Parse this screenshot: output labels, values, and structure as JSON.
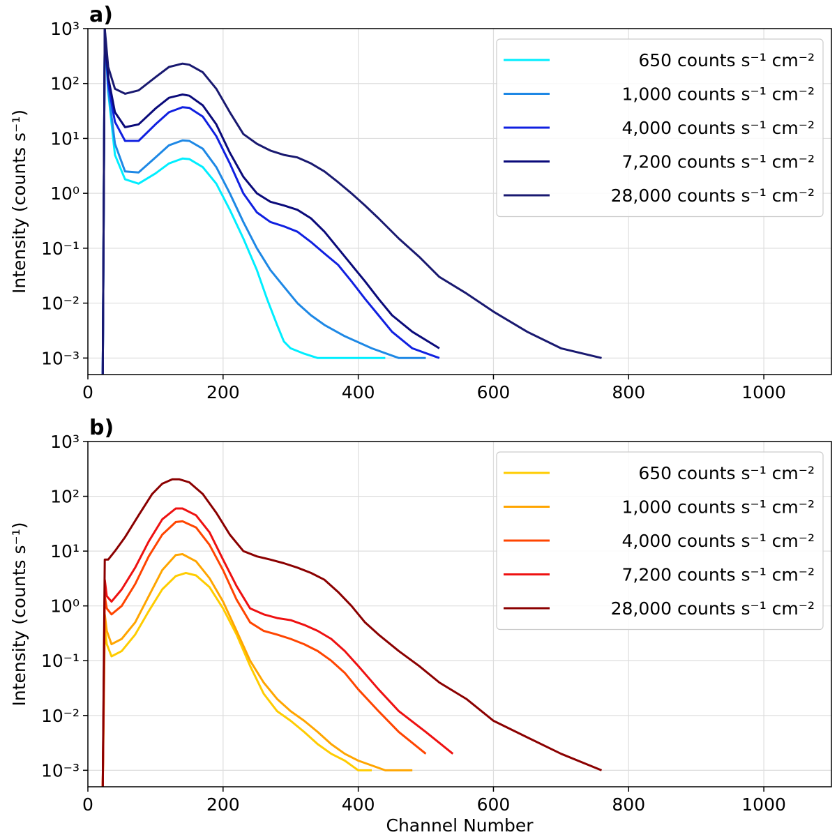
{
  "chart_data": [
    {
      "panel_label": "a)",
      "type": "line",
      "xlabel": "",
      "ylabel": "Intensity (counts s⁻¹)",
      "x_scale": "linear",
      "y_scale": "log",
      "xlim": [
        0,
        1100
      ],
      "ylim": [
        0.0005,
        1000
      ],
      "xticks": [
        "0",
        "200",
        "400",
        "600",
        "800",
        "1000"
      ],
      "yticks": [
        "10⁻³",
        "10⁻²",
        "10⁻¹",
        "10⁰",
        "10¹",
        "10²",
        "10³"
      ],
      "grid": true,
      "legend_position": "top-right",
      "series": [
        {
          "name": "650 counts s⁻¹ cm⁻²",
          "color": "#00eeff",
          "x": [
            22,
            25,
            30,
            40,
            55,
            75,
            100,
            120,
            140,
            150,
            170,
            190,
            210,
            230,
            250,
            265,
            280,
            290,
            300,
            320,
            340,
            360,
            380,
            400,
            420,
            440
          ],
          "y": [
            0.0005,
            900,
            70,
            5,
            1.8,
            1.5,
            2.3,
            3.5,
            4.3,
            4.2,
            3.0,
            1.5,
            0.5,
            0.15,
            0.04,
            0.012,
            0.004,
            0.002,
            0.0015,
            0.0012,
            0.001,
            0.001,
            0.001,
            0.001,
            0.001,
            0.001
          ]
        },
        {
          "name": "1,000 counts s⁻¹ cm⁻²",
          "color": "#1e88e5",
          "x": [
            22,
            25,
            30,
            40,
            55,
            75,
            100,
            120,
            140,
            150,
            170,
            190,
            210,
            230,
            250,
            270,
            290,
            310,
            330,
            350,
            380,
            420,
            460,
            500
          ],
          "y": [
            0.0005,
            950,
            80,
            8,
            2.5,
            2.4,
            4.5,
            7.5,
            9.2,
            9.0,
            6.5,
            3.0,
            1.0,
            0.3,
            0.1,
            0.04,
            0.02,
            0.01,
            0.006,
            0.004,
            0.0025,
            0.0015,
            0.001,
            0.001
          ]
        },
        {
          "name": "4,000 counts s⁻¹ cm⁻²",
          "color": "#1020e0",
          "x": [
            22,
            25,
            30,
            40,
            55,
            75,
            100,
            120,
            140,
            150,
            170,
            190,
            210,
            230,
            250,
            270,
            290,
            310,
            330,
            350,
            370,
            390,
            410,
            430,
            450,
            480,
            520
          ],
          "y": [
            0.0005,
            950,
            100,
            20,
            9,
            9,
            18,
            30,
            37,
            36,
            25,
            11,
            3.5,
            1.0,
            0.45,
            0.3,
            0.25,
            0.2,
            0.13,
            0.08,
            0.05,
            0.025,
            0.012,
            0.006,
            0.003,
            0.0015,
            0.001
          ]
        },
        {
          "name": "7,200 counts s⁻¹ cm⁻²",
          "color": "#0a0a7a",
          "x": [
            22,
            25,
            30,
            40,
            55,
            75,
            100,
            120,
            140,
            150,
            170,
            190,
            210,
            230,
            250,
            270,
            290,
            310,
            330,
            350,
            370,
            390,
            410,
            430,
            450,
            480,
            520
          ],
          "y": [
            0.0005,
            950,
            130,
            30,
            16,
            18,
            35,
            55,
            63,
            60,
            40,
            18,
            5.5,
            2.0,
            1.0,
            0.7,
            0.6,
            0.5,
            0.35,
            0.2,
            0.1,
            0.05,
            0.025,
            0.012,
            0.006,
            0.003,
            0.0015
          ]
        },
        {
          "name": "28,000 counts s⁻¹ cm⁻²",
          "color": "#191970",
          "x": [
            22,
            25,
            30,
            40,
            55,
            75,
            100,
            120,
            140,
            150,
            170,
            190,
            210,
            230,
            250,
            270,
            290,
            310,
            330,
            350,
            370,
            390,
            410,
            430,
            460,
            490,
            520,
            560,
            600,
            650,
            700,
            760
          ],
          "y": [
            0.0005,
            1000,
            200,
            80,
            65,
            75,
            130,
            200,
            230,
            220,
            160,
            80,
            30,
            12,
            8,
            6,
            5,
            4.5,
            3.5,
            2.5,
            1.6,
            1.0,
            0.6,
            0.35,
            0.15,
            0.07,
            0.03,
            0.015,
            0.007,
            0.003,
            0.0015,
            0.001
          ]
        }
      ]
    },
    {
      "panel_label": "b)",
      "type": "line",
      "xlabel": "Channel Number",
      "ylabel": "Intensity (counts s⁻¹)",
      "x_scale": "linear",
      "y_scale": "log",
      "xlim": [
        0,
        1100
      ],
      "ylim": [
        0.0005,
        1000
      ],
      "xticks": [
        "0",
        "200",
        "400",
        "600",
        "800",
        "1000"
      ],
      "yticks": [
        "10⁻³",
        "10⁻²",
        "10⁻¹",
        "10⁰",
        "10¹",
        "10²",
        "10³"
      ],
      "grid": true,
      "legend_position": "top-right",
      "series": [
        {
          "name": "650 counts s⁻¹ cm⁻²",
          "color": "#ffcc00",
          "x": [
            22,
            25,
            28,
            35,
            50,
            70,
            90,
            110,
            130,
            145,
            160,
            180,
            200,
            220,
            240,
            260,
            280,
            300,
            320,
            340,
            360,
            380,
            400,
            420
          ],
          "y": [
            0.0005,
            0.4,
            0.2,
            0.12,
            0.15,
            0.3,
            0.8,
            2.0,
            3.5,
            4.0,
            3.6,
            2.2,
            0.9,
            0.3,
            0.08,
            0.025,
            0.012,
            0.008,
            0.005,
            0.003,
            0.002,
            0.0015,
            0.001,
            0.001
          ]
        },
        {
          "name": "1,000 counts s⁻¹ cm⁻²",
          "color": "#ffa500",
          "x": [
            22,
            25,
            28,
            35,
            50,
            70,
            90,
            110,
            130,
            140,
            160,
            180,
            200,
            220,
            240,
            260,
            280,
            300,
            320,
            340,
            360,
            380,
            400,
            440,
            480
          ],
          "y": [
            0.0005,
            0.7,
            0.35,
            0.2,
            0.25,
            0.5,
            1.5,
            4.5,
            8.5,
            8.8,
            6.5,
            3.2,
            1.2,
            0.35,
            0.1,
            0.04,
            0.02,
            0.012,
            0.008,
            0.005,
            0.003,
            0.002,
            0.0015,
            0.001,
            0.001
          ]
        },
        {
          "name": "4,000 counts s⁻¹ cm⁻²",
          "color": "#ff4500",
          "x": [
            22,
            25,
            28,
            35,
            50,
            70,
            90,
            110,
            130,
            140,
            160,
            180,
            200,
            220,
            240,
            260,
            280,
            300,
            320,
            340,
            360,
            380,
            400,
            430,
            460,
            500
          ],
          "y": [
            0.0005,
            1.5,
            0.9,
            0.7,
            1.0,
            2.5,
            8,
            20,
            34,
            35,
            27,
            13,
            4.5,
            1.3,
            0.5,
            0.35,
            0.3,
            0.25,
            0.2,
            0.15,
            0.1,
            0.06,
            0.03,
            0.012,
            0.005,
            0.002
          ]
        },
        {
          "name": "7,200 counts s⁻¹ cm⁻²",
          "color": "#ee1111",
          "x": [
            22,
            25,
            28,
            35,
            50,
            70,
            90,
            110,
            130,
            140,
            160,
            180,
            200,
            220,
            240,
            260,
            280,
            300,
            320,
            340,
            360,
            380,
            400,
            430,
            460,
            500,
            540
          ],
          "y": [
            0.0005,
            3,
            1.5,
            1.2,
            2.0,
            5,
            15,
            38,
            60,
            60,
            45,
            22,
            7,
            2.3,
            0.9,
            0.7,
            0.6,
            0.55,
            0.45,
            0.35,
            0.25,
            0.15,
            0.08,
            0.03,
            0.012,
            0.005,
            0.002
          ]
        },
        {
          "name": "28,000 counts s⁻¹ cm⁻²",
          "color": "#8b0000",
          "x": [
            22,
            25,
            30,
            40,
            55,
            75,
            95,
            110,
            125,
            135,
            150,
            170,
            190,
            210,
            230,
            250,
            270,
            290,
            310,
            330,
            350,
            370,
            390,
            410,
            430,
            460,
            490,
            520,
            560,
            600,
            650,
            700,
            760
          ],
          "y": [
            0.0005,
            7,
            7,
            10,
            18,
            45,
            110,
            170,
            205,
            205,
            180,
            110,
            50,
            20,
            10,
            8,
            7,
            6,
            5,
            4,
            3,
            1.8,
            1.0,
            0.5,
            0.3,
            0.15,
            0.08,
            0.04,
            0.02,
            0.008,
            0.004,
            0.002,
            0.001
          ]
        }
      ]
    }
  ]
}
